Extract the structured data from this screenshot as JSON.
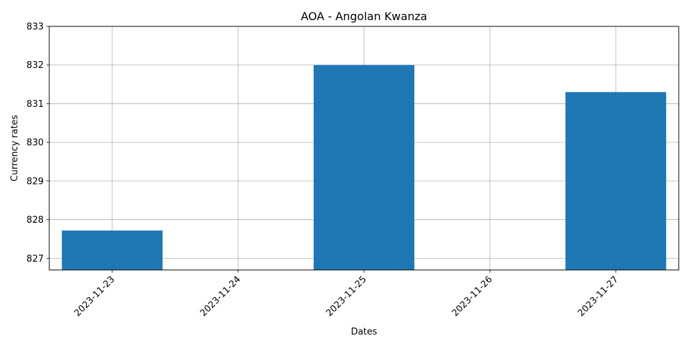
{
  "chart_data": {
    "type": "bar",
    "title": "AOA - Angolan Kwanza",
    "xlabel": "Dates",
    "ylabel": "Currency rates",
    "categories": [
      "2023-11-23",
      "2023-11-24",
      "2023-11-25",
      "2023-11-26",
      "2023-11-27"
    ],
    "values": [
      827.72,
      null,
      832.0,
      null,
      831.3
    ],
    "ylim": [
      826.7,
      833
    ],
    "yticks": [
      827,
      828,
      829,
      830,
      831,
      832,
      833
    ],
    "grid": true,
    "bar_color": "#1f77b4",
    "x_tick_rotation_deg": 45
  }
}
